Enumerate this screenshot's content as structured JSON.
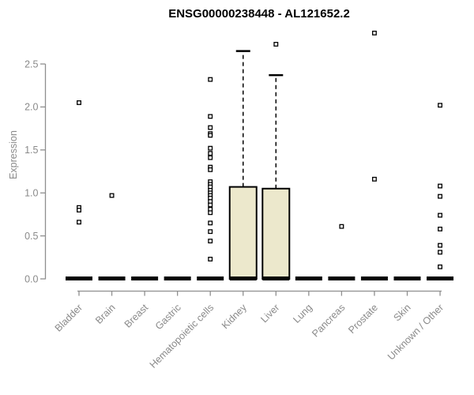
{
  "chart_data": {
    "type": "boxplot",
    "title": "ENSG00000238448 - AL121652.2",
    "ylabel": "Expression",
    "xlabel": "",
    "ylim": [
      0,
      2.9
    ],
    "yticks": [
      0.0,
      0.5,
      1.0,
      1.5,
      2.0,
      2.5
    ],
    "grid": false,
    "legend": "none",
    "box_fill_color": "#ece8cc",
    "box_border_color": "#000000",
    "axis_color": "#8f8f8f",
    "tick_label_color": "#8a8a8a",
    "outlier_marker": "open-square",
    "categories": [
      {
        "label": "Bladder",
        "box": {
          "whisker_low": 0,
          "q1": 0,
          "median": 0,
          "q3": 0,
          "whisker_high": 0
        },
        "outliers": [
          2.05,
          0.83,
          0.8,
          0.66
        ]
      },
      {
        "label": "Brain",
        "box": {
          "whisker_low": 0,
          "q1": 0,
          "median": 0,
          "q3": 0,
          "whisker_high": 0
        },
        "outliers": [
          0.97
        ]
      },
      {
        "label": "Breast",
        "box": {
          "whisker_low": 0,
          "q1": 0,
          "median": 0,
          "q3": 0,
          "whisker_high": 0
        },
        "outliers": []
      },
      {
        "label": "Gastric",
        "box": {
          "whisker_low": 0,
          "q1": 0,
          "median": 0,
          "q3": 0,
          "whisker_high": 0
        },
        "outliers": []
      },
      {
        "label": "Hematopoietic cells",
        "box": {
          "whisker_low": 0,
          "q1": 0,
          "median": 0,
          "q3": 0,
          "whisker_high": 0
        },
        "outliers": [
          2.32,
          1.89,
          1.76,
          1.69,
          1.67,
          1.52,
          1.46,
          1.41,
          1.3,
          1.27,
          1.13,
          1.1,
          1.07,
          1.03,
          1.0,
          0.97,
          0.94,
          0.9,
          0.86,
          0.81,
          0.77,
          0.65,
          0.55,
          0.44,
          0.23
        ]
      },
      {
        "label": "Kidney",
        "box": {
          "whisker_low": 0,
          "q1": 0,
          "median": 0,
          "q3": 1.07,
          "whisker_high": 2.65
        },
        "outliers": []
      },
      {
        "label": "Liver",
        "box": {
          "whisker_low": 0,
          "q1": 0,
          "median": 0,
          "q3": 1.05,
          "whisker_high": 2.37
        },
        "outliers": [
          2.73
        ]
      },
      {
        "label": "Lung",
        "box": {
          "whisker_low": 0,
          "q1": 0,
          "median": 0,
          "q3": 0,
          "whisker_high": 0
        },
        "outliers": []
      },
      {
        "label": "Pancreas",
        "box": {
          "whisker_low": 0,
          "q1": 0,
          "median": 0,
          "q3": 0,
          "whisker_high": 0
        },
        "outliers": [
          0.61
        ]
      },
      {
        "label": "Prostate",
        "box": {
          "whisker_low": 0,
          "q1": 0,
          "median": 0,
          "q3": 0,
          "whisker_high": 0
        },
        "outliers": [
          2.86,
          1.16
        ]
      },
      {
        "label": "Skin",
        "box": {
          "whisker_low": 0,
          "q1": 0,
          "median": 0,
          "q3": 0,
          "whisker_high": 0
        },
        "outliers": []
      },
      {
        "label": "Unknown / Other",
        "box": {
          "whisker_low": 0,
          "q1": 0,
          "median": 0,
          "q3": 0,
          "whisker_high": 0
        },
        "outliers": [
          2.02,
          1.08,
          0.96,
          0.74,
          0.58,
          0.39,
          0.31,
          0.14
        ]
      }
    ]
  }
}
